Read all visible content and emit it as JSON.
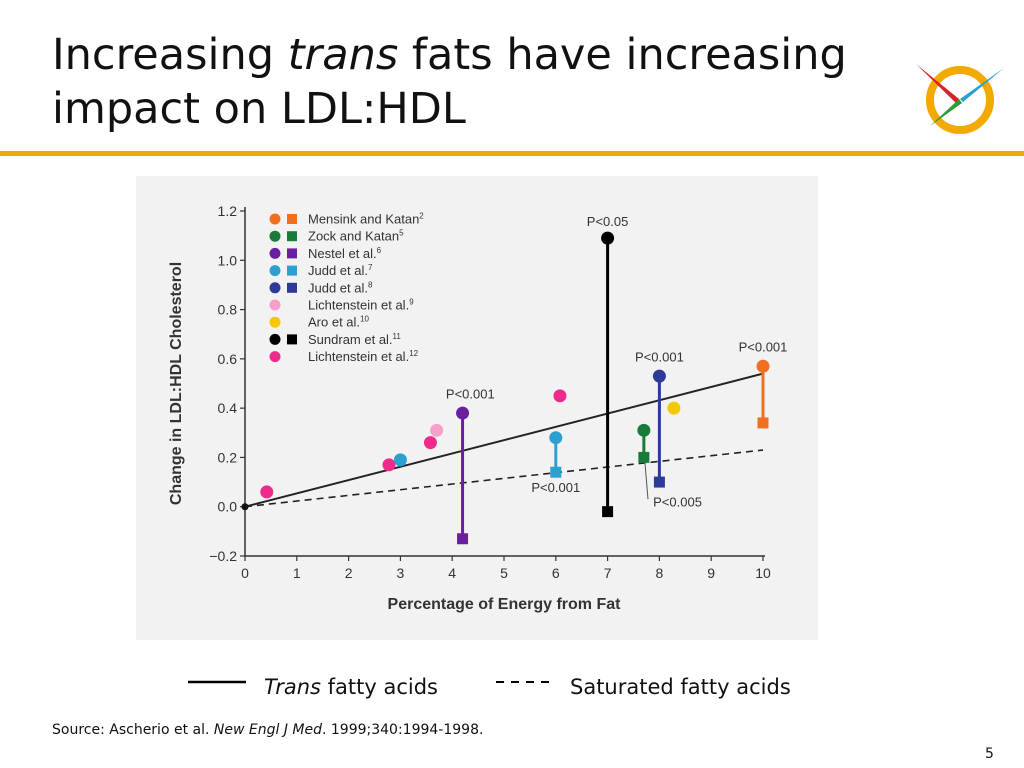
{
  "slide": {
    "title_pre": "Increasing ",
    "title_italic": "trans",
    "title_post": " fats have increasing impact on LDL:HDL",
    "source_pre": "Source: Ascherio et al. ",
    "source_italic": "New Engl J Med",
    "source_post": ". 1999;340:1994-1998.",
    "page_number": "5",
    "accent_color": "#F2A900"
  },
  "bottom_legend": {
    "trans_italic": "Trans",
    "trans_rest": " fatty acids",
    "saturated": "Saturated fatty acids"
  },
  "chart_data": {
    "type": "scatter",
    "xlabel": "Percentage of Energy from Fat",
    "ylabel": "Change in LDL:HDL Cholesterol",
    "xlim": [
      0,
      10
    ],
    "ylim": [
      -0.2,
      1.2
    ],
    "xticks": [
      "0",
      "1",
      "2",
      "3",
      "4",
      "5",
      "6",
      "7",
      "8",
      "9",
      "10"
    ],
    "yticks": [
      "−0.2",
      "0.0",
      "0.2",
      "0.4",
      "0.6",
      "0.8",
      "1.0",
      "1.2"
    ],
    "grid": false,
    "legend_position": "top-left",
    "legend": [
      {
        "name": "Mensink and Katan",
        "sup": "2",
        "color": "#F07020",
        "markers": [
          "circle",
          "square"
        ]
      },
      {
        "name": "Zock and Katan",
        "sup": "5",
        "color": "#1A7A3A",
        "markers": [
          "circle",
          "square"
        ]
      },
      {
        "name": "Nestel et al.",
        "sup": "6",
        "color": "#6A1FA0",
        "markers": [
          "circle",
          "square"
        ]
      },
      {
        "name": "Judd et al.",
        "sup": "7",
        "color": "#2CA0D0",
        "markers": [
          "circle",
          "square"
        ]
      },
      {
        "name": "Judd et al.",
        "sup": "8",
        "color": "#2E3A9A",
        "markers": [
          "circle",
          "square"
        ]
      },
      {
        "name": "Lichtenstein et al.",
        "sup": "9",
        "color": "#F5A0C8",
        "markers": [
          "circle"
        ]
      },
      {
        "name": "Aro et al.",
        "sup": "10",
        "color": "#F5C800",
        "markers": [
          "circle"
        ]
      },
      {
        "name": "Sundram et al.",
        "sup": "11",
        "color": "#000000",
        "markers": [
          "circle",
          "square"
        ]
      },
      {
        "name": "Lichtenstein et al.",
        "sup": "12",
        "color": "#EE2A8A",
        "markers": [
          "circle"
        ]
      }
    ],
    "points": [
      {
        "study": 8,
        "x": 0.42,
        "y": 0.06,
        "marker": "circle"
      },
      {
        "study": 8,
        "x": 2.78,
        "y": 0.17,
        "marker": "circle"
      },
      {
        "study": 3,
        "x": 3.0,
        "y": 0.19,
        "marker": "circle"
      },
      {
        "study": 8,
        "x": 3.58,
        "y": 0.26,
        "marker": "circle"
      },
      {
        "study": 5,
        "x": 3.7,
        "y": 0.31,
        "marker": "circle"
      },
      {
        "study": 2,
        "x": 4.2,
        "y": 0.38,
        "marker": "circle"
      },
      {
        "study": 2,
        "x": 4.2,
        "y": -0.13,
        "marker": "square"
      },
      {
        "study": 3,
        "x": 6.0,
        "y": 0.28,
        "marker": "circle"
      },
      {
        "study": 3,
        "x": 6.0,
        "y": 0.14,
        "marker": "square"
      },
      {
        "study": 8,
        "x": 6.08,
        "y": 0.45,
        "marker": "circle"
      },
      {
        "study": 7,
        "x": 7.0,
        "y": 1.09,
        "marker": "circle"
      },
      {
        "study": 7,
        "x": 7.0,
        "y": -0.02,
        "marker": "square"
      },
      {
        "study": 1,
        "x": 7.7,
        "y": 0.31,
        "marker": "circle"
      },
      {
        "study": 1,
        "x": 7.7,
        "y": 0.2,
        "marker": "square"
      },
      {
        "study": 4,
        "x": 8.0,
        "y": 0.53,
        "marker": "circle"
      },
      {
        "study": 4,
        "x": 8.0,
        "y": 0.1,
        "marker": "square"
      },
      {
        "study": 6,
        "x": 8.28,
        "y": 0.4,
        "marker": "circle"
      },
      {
        "study": 0,
        "x": 10.0,
        "y": 0.57,
        "marker": "circle"
      },
      {
        "study": 0,
        "x": 10.0,
        "y": 0.34,
        "marker": "square"
      }
    ],
    "connectors": [
      {
        "study": 2,
        "x": 4.2,
        "y1": 0.38,
        "y2": -0.13
      },
      {
        "study": 3,
        "x": 6.0,
        "y1": 0.28,
        "y2": 0.14
      },
      {
        "study": 7,
        "x": 7.0,
        "y1": 1.09,
        "y2": -0.02
      },
      {
        "study": 1,
        "x": 7.7,
        "y1": 0.31,
        "y2": 0.2
      },
      {
        "study": 4,
        "x": 8.0,
        "y1": 0.53,
        "y2": 0.1
      },
      {
        "study": 0,
        "x": 10.0,
        "y1": 0.57,
        "y2": 0.34
      }
    ],
    "series": [
      {
        "name": "Trans fatty acids",
        "style": "solid",
        "x": [
          0,
          10
        ],
        "y": [
          0.0,
          0.54
        ]
      },
      {
        "name": "Saturated fatty acids",
        "style": "dashed",
        "x": [
          0,
          10
        ],
        "y": [
          0.0,
          0.23
        ]
      }
    ],
    "origin_point": {
      "x": 0,
      "y": 0
    },
    "annotations": [
      {
        "text": "P<0.001",
        "x": 4.35,
        "y": 0.44
      },
      {
        "text": "P<0.05",
        "x": 7.0,
        "y": 1.14
      },
      {
        "text": "P<0.001",
        "x": 8.0,
        "y": 0.59
      },
      {
        "text": "P<0.001",
        "x": 10.0,
        "y": 0.63
      },
      {
        "text": "P<0.001",
        "x": 6.0,
        "y": 0.06
      },
      {
        "text": "P<0.005",
        "x": 8.35,
        "y": 0.0
      }
    ]
  }
}
